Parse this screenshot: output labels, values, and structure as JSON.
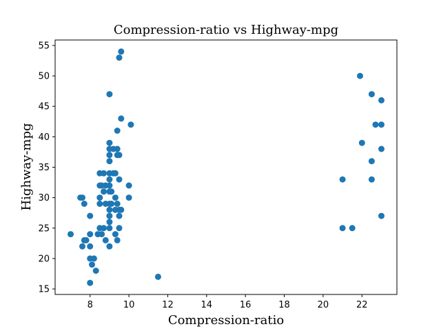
{
  "chart_data": {
    "type": "scatter",
    "title": "Compression-ratio vs Highway-mpg",
    "xlabel": "Compression-ratio",
    "ylabel": "Highway-mpg",
    "xlim": [
      6.2,
      23.8
    ],
    "ylim": [
      14.1,
      55.9
    ],
    "xticks": [
      8,
      10,
      12,
      14,
      16,
      18,
      20,
      22
    ],
    "yticks": [
      15,
      20,
      25,
      30,
      35,
      40,
      45,
      50,
      55
    ],
    "grid": false,
    "marker_color": "#1f77b4",
    "points": [
      [
        7.0,
        24
      ],
      [
        7.6,
        22
      ],
      [
        7.5,
        30
      ],
      [
        7.6,
        30
      ],
      [
        7.7,
        29
      ],
      [
        7.7,
        23
      ],
      [
        7.8,
        23
      ],
      [
        8.0,
        27
      ],
      [
        8.0,
        24
      ],
      [
        8.0,
        22
      ],
      [
        8.0,
        20
      ],
      [
        8.0,
        16
      ],
      [
        8.1,
        19
      ],
      [
        8.2,
        20
      ],
      [
        8.3,
        18
      ],
      [
        8.4,
        24
      ],
      [
        8.5,
        34
      ],
      [
        8.5,
        32
      ],
      [
        8.5,
        30
      ],
      [
        8.5,
        29
      ],
      [
        8.5,
        25
      ],
      [
        8.6,
        24
      ],
      [
        8.6,
        32
      ],
      [
        8.7,
        34
      ],
      [
        8.7,
        31
      ],
      [
        8.7,
        25
      ],
      [
        8.8,
        32
      ],
      [
        8.8,
        29
      ],
      [
        8.8,
        23
      ],
      [
        9.0,
        47
      ],
      [
        9.0,
        39
      ],
      [
        9.0,
        38
      ],
      [
        9.0,
        37
      ],
      [
        9.0,
        36
      ],
      [
        9.0,
        34
      ],
      [
        9.0,
        33
      ],
      [
        9.0,
        32
      ],
      [
        9.0,
        31
      ],
      [
        9.0,
        29
      ],
      [
        9.0,
        28
      ],
      [
        9.0,
        27
      ],
      [
        9.0,
        26
      ],
      [
        9.0,
        25
      ],
      [
        9.0,
        22
      ],
      [
        9.1,
        31
      ],
      [
        9.1,
        29
      ],
      [
        9.2,
        38
      ],
      [
        9.2,
        34
      ],
      [
        9.3,
        34
      ],
      [
        9.3,
        30
      ],
      [
        9.3,
        28
      ],
      [
        9.3,
        24
      ],
      [
        9.4,
        41
      ],
      [
        9.4,
        38
      ],
      [
        9.4,
        37
      ],
      [
        9.4,
        29
      ],
      [
        9.4,
        23
      ],
      [
        9.5,
        53
      ],
      [
        9.5,
        37
      ],
      [
        9.5,
        33
      ],
      [
        9.5,
        28
      ],
      [
        9.5,
        27
      ],
      [
        9.5,
        25
      ],
      [
        9.6,
        54
      ],
      [
        9.6,
        43
      ],
      [
        9.6,
        28
      ],
      [
        10.0,
        32
      ],
      [
        10.0,
        30
      ],
      [
        10.1,
        42
      ],
      [
        11.5,
        17
      ],
      [
        21.0,
        33
      ],
      [
        21.0,
        25
      ],
      [
        21.5,
        25
      ],
      [
        21.9,
        50
      ],
      [
        22.0,
        39
      ],
      [
        22.5,
        47
      ],
      [
        22.5,
        36
      ],
      [
        22.5,
        33
      ],
      [
        22.7,
        42
      ],
      [
        23.0,
        46
      ],
      [
        23.0,
        42
      ],
      [
        23.0,
        38
      ],
      [
        23.0,
        27
      ]
    ]
  }
}
